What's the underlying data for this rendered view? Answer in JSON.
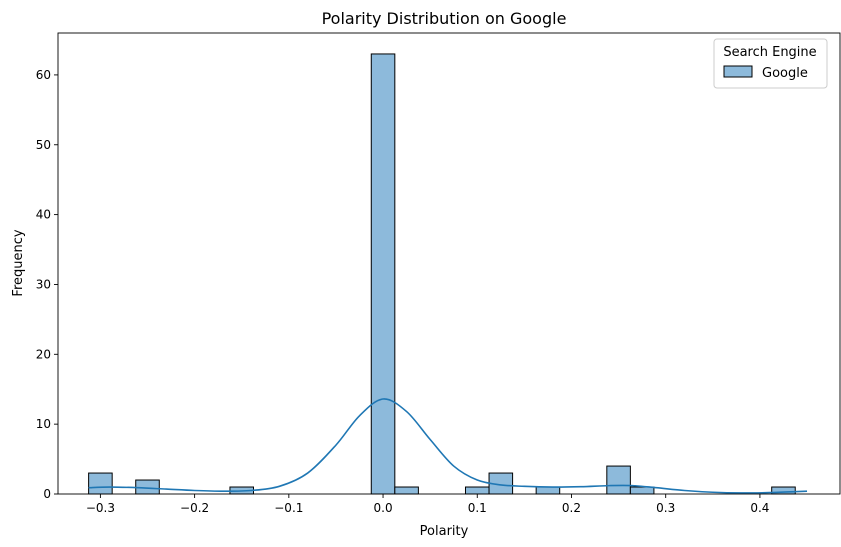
{
  "chart_data": {
    "type": "bar",
    "title": "Polarity Distribution on Google",
    "xlabel": "Polarity",
    "ylabel": "Frequency",
    "xlim": [
      -0.345,
      0.485
    ],
    "ylim": [
      0,
      66
    ],
    "x_ticks": [
      -0.3,
      -0.2,
      -0.1,
      0.0,
      0.1,
      0.2,
      0.3,
      0.4
    ],
    "x_tick_labels": [
      "−0.3",
      "−0.2",
      "−0.1",
      "0.0",
      "0.1",
      "0.2",
      "0.3",
      "0.4"
    ],
    "y_ticks": [
      0,
      10,
      20,
      30,
      40,
      50,
      60
    ],
    "y_tick_labels": [
      "0",
      "10",
      "20",
      "30",
      "40",
      "50",
      "60"
    ],
    "bin_width": 0.025,
    "bins": [
      {
        "x0": -0.3125,
        "x1": -0.2875,
        "count": 3
      },
      {
        "x0": -0.2625,
        "x1": -0.2375,
        "count": 2
      },
      {
        "x0": -0.1625,
        "x1": -0.1375,
        "count": 1
      },
      {
        "x0": -0.0125,
        "x1": 0.0125,
        "count": 63
      },
      {
        "x0": 0.0125,
        "x1": 0.0375,
        "count": 1
      },
      {
        "x0": 0.0875,
        "x1": 0.1125,
        "count": 1
      },
      {
        "x0": 0.1125,
        "x1": 0.1375,
        "count": 3
      },
      {
        "x0": 0.1625,
        "x1": 0.1875,
        "count": 1
      },
      {
        "x0": 0.2375,
        "x1": 0.2625,
        "count": 4
      },
      {
        "x0": 0.2625,
        "x1": 0.2875,
        "count": 1
      },
      {
        "x0": 0.4125,
        "x1": 0.4375,
        "count": 1
      }
    ],
    "kde_curve": [
      [
        -0.3125,
        0.9
      ],
      [
        -0.29,
        1.0
      ],
      [
        -0.26,
        0.9
      ],
      [
        -0.23,
        0.7
      ],
      [
        -0.2,
        0.5
      ],
      [
        -0.17,
        0.4
      ],
      [
        -0.14,
        0.5
      ],
      [
        -0.11,
        1.1
      ],
      [
        -0.08,
        3.0
      ],
      [
        -0.05,
        7.0
      ],
      [
        -0.025,
        11.2
      ],
      [
        0.0,
        13.6
      ],
      [
        0.025,
        11.8
      ],
      [
        0.05,
        7.8
      ],
      [
        0.075,
        4.0
      ],
      [
        0.1,
        2.0
      ],
      [
        0.125,
        1.3
      ],
      [
        0.15,
        1.1
      ],
      [
        0.18,
        1.0
      ],
      [
        0.21,
        1.05
      ],
      [
        0.24,
        1.2
      ],
      [
        0.265,
        1.2
      ],
      [
        0.29,
        0.9
      ],
      [
        0.32,
        0.5
      ],
      [
        0.35,
        0.25
      ],
      [
        0.38,
        0.15
      ],
      [
        0.41,
        0.2
      ],
      [
        0.44,
        0.35
      ],
      [
        0.45,
        0.4
      ]
    ],
    "legend": {
      "title": "Search Engine",
      "entries": [
        "Google"
      ],
      "position": "top-right"
    },
    "colors": {
      "bar_fill": "#8dbadb",
      "bar_edge": "#000000",
      "kde_line": "#1f77b4"
    },
    "grid": false
  }
}
